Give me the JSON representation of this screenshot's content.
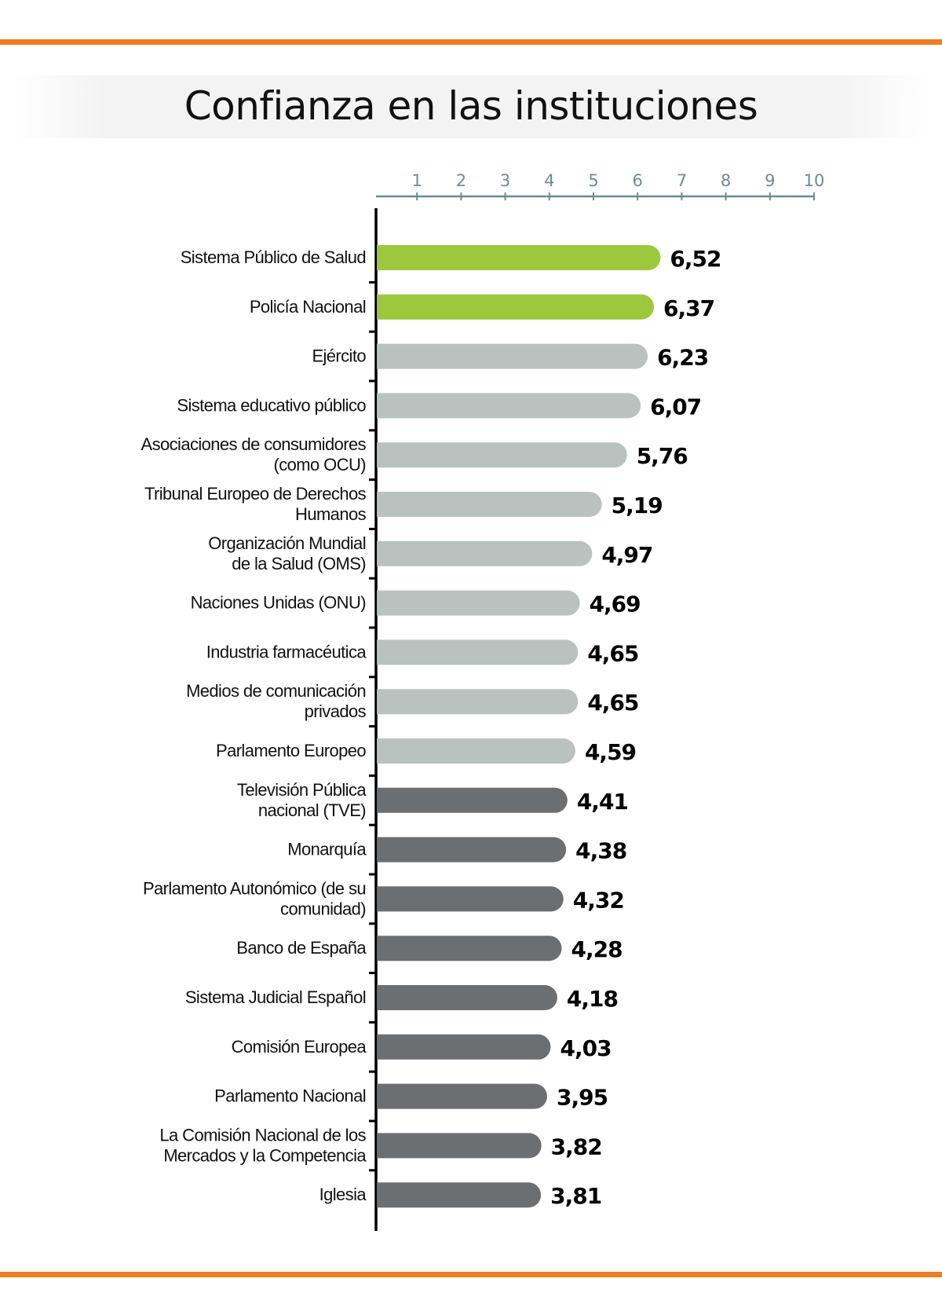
{
  "chart_data": {
    "type": "bar",
    "orientation": "horizontal",
    "title": "Confianza en las instituciones",
    "xlim": [
      0,
      10
    ],
    "x_ticks": [
      "1",
      "2",
      "3",
      "4",
      "5",
      "6",
      "7",
      "8",
      "9",
      "10"
    ],
    "axis_position": "top",
    "grid": false,
    "categories": [
      "Sistema Público de Salud",
      "Policía Nacional",
      "Ejército",
      "Sistema  educativo público",
      "Asociaciones de consumidores\n(como OCU)",
      "Tribunal Europeo de Derechos\nHumanos",
      "Organización Mundial\nde la Salud (OMS)",
      "Naciones Unidas (ONU)",
      "Industria farmacéutica",
      "Medios de comunicación\nprivados",
      "Parlamento Europeo",
      "Televisión Pública\nnacional (TVE)",
      "Monarquía",
      "Parlamento Autonómico (de su\ncomunidad)",
      "Banco de España",
      "Sistema Judicial Español",
      "Comisión Europea",
      "Parlamento Nacional",
      "La Comisión Nacional de los\nMercados y la Competencia",
      "Iglesia"
    ],
    "values": [
      6.52,
      6.37,
      6.23,
      6.07,
      5.76,
      5.19,
      4.97,
      4.69,
      4.65,
      4.65,
      4.59,
      4.41,
      4.38,
      4.32,
      4.28,
      4.18,
      4.03,
      3.95,
      3.82,
      3.81
    ],
    "value_labels": [
      "6,52",
      "6,37",
      "6,23",
      "6,07",
      "5,76",
      "5,19",
      "4,97",
      "4,69",
      "4,65",
      "4,65",
      "4,59",
      "4,41",
      "4,38",
      "4,32",
      "4,28",
      "4,18",
      "4,03",
      "3,95",
      "3,82",
      "3,81"
    ],
    "bar_colors": [
      "#9dc73c",
      "#9dc73c",
      "#b9c2bf",
      "#b9c2bf",
      "#b9c2bf",
      "#b9c2bf",
      "#b9c2bf",
      "#b9c2bf",
      "#b9c2bf",
      "#b9c2bf",
      "#b9c2bf",
      "#6b6f72",
      "#6b6f72",
      "#6b6f72",
      "#6b6f72",
      "#6b6f72",
      "#6b6f72",
      "#6b6f72",
      "#6b6f72",
      "#6b6f72"
    ]
  },
  "colors": {
    "accent_rule": "#f07b22",
    "axis": "#6e8a99"
  }
}
